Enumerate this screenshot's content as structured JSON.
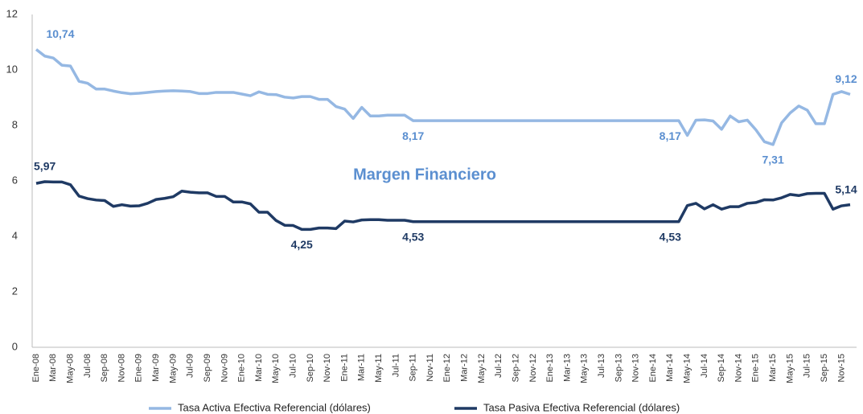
{
  "chart_data": {
    "type": "line",
    "annotation": "Margen Financiero",
    "categories": [
      "Ene-08",
      null,
      "Mar-08",
      null,
      "May-08",
      null,
      "Jul-08",
      null,
      "Sep-08",
      null,
      "Nov-08",
      null,
      "Ene-09",
      null,
      "Mar-09",
      null,
      "May-09",
      null,
      "Jul-09",
      null,
      "Sep-09",
      null,
      "Nov-09",
      null,
      "Ene-10",
      null,
      "Mar-10",
      null,
      "May-10",
      null,
      "Jul-10",
      null,
      "Sep-10",
      null,
      "Nov-10",
      null,
      "Ene-11",
      null,
      "Mar-11",
      null,
      "May-11",
      null,
      "Jul-11",
      null,
      "Sep-11",
      null,
      "Nov-11",
      null,
      "Ene-12",
      null,
      "Mar-12",
      null,
      "May-12",
      null,
      "Jul-12",
      null,
      "Sep-12",
      null,
      "Nov-12",
      null,
      "Ene-13",
      null,
      "Mar-13",
      null,
      "May-13",
      null,
      "Jul-13",
      null,
      "Sep-13",
      null,
      "Nov-13",
      null,
      "Ene-14",
      null,
      "Mar-14",
      null,
      "May-14",
      null,
      "Jul-14",
      null,
      "Sep-14",
      null,
      "Nov-14",
      null,
      "Ene-15",
      null,
      "Mar-15",
      null,
      "May-15",
      null,
      "Jul-15",
      null,
      "Sep-15",
      null,
      "Nov-15",
      null
    ],
    "series": [
      {
        "name": "Tasa Activa Efectiva Referencial (dólares)",
        "color": "#95b8e3",
        "label_color": "#5b8fd0",
        "values": [
          10.74,
          10.5,
          10.43,
          10.17,
          10.14,
          9.59,
          9.52,
          9.31,
          9.31,
          9.24,
          9.18,
          9.14,
          9.16,
          9.19,
          9.22,
          9.24,
          9.25,
          9.24,
          9.22,
          9.15,
          9.15,
          9.19,
          9.19,
          9.19,
          9.13,
          9.07,
          9.21,
          9.12,
          9.11,
          9.02,
          8.99,
          9.04,
          9.04,
          8.94,
          8.94,
          8.68,
          8.59,
          8.25,
          8.65,
          8.34,
          8.34,
          8.37,
          8.37,
          8.37,
          8.17,
          8.17,
          8.17,
          8.17,
          8.17,
          8.17,
          8.17,
          8.17,
          8.17,
          8.17,
          8.17,
          8.17,
          8.17,
          8.17,
          8.17,
          8.17,
          8.17,
          8.17,
          8.17,
          8.17,
          8.17,
          8.17,
          8.17,
          8.17,
          8.17,
          8.17,
          8.17,
          8.17,
          8.17,
          8.17,
          8.17,
          8.17,
          7.64,
          8.19,
          8.2,
          8.16,
          7.86,
          8.34,
          8.13,
          8.19,
          7.84,
          7.41,
          7.31,
          8.09,
          8.45,
          8.7,
          8.55,
          8.06,
          8.06,
          9.12,
          9.22,
          9.12
        ],
        "value_labels": [
          "10,74",
          null,
          null,
          null,
          null,
          null,
          null,
          null,
          null,
          null,
          null,
          null,
          null,
          null,
          null,
          null,
          null,
          null,
          null,
          null,
          null,
          null,
          null,
          null,
          null,
          null,
          null,
          null,
          null,
          null,
          null,
          null,
          null,
          null,
          null,
          null,
          null,
          null,
          null,
          null,
          null,
          null,
          null,
          null,
          "8,17",
          null,
          null,
          null,
          null,
          null,
          null,
          null,
          null,
          null,
          null,
          null,
          null,
          null,
          null,
          null,
          null,
          null,
          null,
          null,
          null,
          null,
          null,
          null,
          null,
          null,
          null,
          null,
          null,
          null,
          "8,17",
          null,
          null,
          null,
          null,
          null,
          null,
          null,
          null,
          null,
          null,
          null,
          "7,31",
          null,
          null,
          null,
          null,
          null,
          null,
          null,
          null,
          "9,12"
        ]
      },
      {
        "name": "Tasa Pasiva Efectiva Referencial (dólares)",
        "color": "#1f3a64",
        "label_color": "#1f3a64",
        "values": [
          5.91,
          5.97,
          5.96,
          5.96,
          5.86,
          5.45,
          5.36,
          5.31,
          5.29,
          5.08,
          5.14,
          5.09,
          5.1,
          5.19,
          5.33,
          5.37,
          5.43,
          5.63,
          5.59,
          5.57,
          5.57,
          5.44,
          5.44,
          5.24,
          5.24,
          5.17,
          4.87,
          4.87,
          4.57,
          4.4,
          4.39,
          4.25,
          4.25,
          4.3,
          4.3,
          4.28,
          4.55,
          4.52,
          4.59,
          4.6,
          4.6,
          4.58,
          4.58,
          4.58,
          4.53,
          4.53,
          4.53,
          4.53,
          4.53,
          4.53,
          4.53,
          4.53,
          4.53,
          4.53,
          4.53,
          4.53,
          4.53,
          4.53,
          4.53,
          4.53,
          4.53,
          4.53,
          4.53,
          4.53,
          4.53,
          4.53,
          4.53,
          4.53,
          4.53,
          4.53,
          4.53,
          4.53,
          4.53,
          4.53,
          4.53,
          4.53,
          5.11,
          5.19,
          4.99,
          5.14,
          4.98,
          5.07,
          5.07,
          5.19,
          5.22,
          5.32,
          5.31,
          5.39,
          5.51,
          5.47,
          5.54,
          5.55,
          5.55,
          4.98,
          5.1,
          5.14
        ],
        "value_labels": [
          null,
          "5,97",
          null,
          null,
          null,
          null,
          null,
          null,
          null,
          null,
          null,
          null,
          null,
          null,
          null,
          null,
          null,
          null,
          null,
          null,
          null,
          null,
          null,
          null,
          null,
          null,
          null,
          null,
          null,
          null,
          null,
          "4,25",
          null,
          null,
          null,
          null,
          null,
          null,
          null,
          null,
          null,
          null,
          null,
          null,
          "4,53",
          null,
          null,
          null,
          null,
          null,
          null,
          null,
          null,
          null,
          null,
          null,
          null,
          null,
          null,
          null,
          null,
          null,
          null,
          null,
          null,
          null,
          null,
          null,
          null,
          null,
          null,
          null,
          null,
          null,
          "4,53",
          null,
          null,
          null,
          null,
          null,
          null,
          null,
          null,
          null,
          null,
          null,
          null,
          null,
          null,
          null,
          null,
          null,
          null,
          null,
          null,
          "5,14"
        ]
      }
    ],
    "ylim": [
      0,
      12
    ],
    "yticks": [
      0,
      2,
      4,
      6,
      8,
      10,
      12
    ],
    "grid": false,
    "legend": "bottom"
  }
}
